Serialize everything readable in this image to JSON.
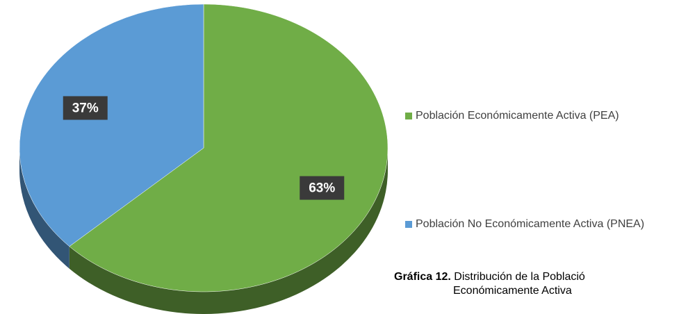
{
  "chart_data": {
    "type": "pie",
    "categories": [
      "Población Económicamente Activa (PEA)",
      "Población No Económicamente Activa (PNEA)"
    ],
    "values": [
      63,
      37
    ],
    "value_labels": [
      "63%",
      "37%"
    ],
    "colors": [
      "#70ad47",
      "#5b9bd5"
    ],
    "legend": "right",
    "caption": {
      "label": "Gráfica 12.",
      "text": "Distribución de la Població",
      "text2": "Económicamente Activa"
    }
  }
}
